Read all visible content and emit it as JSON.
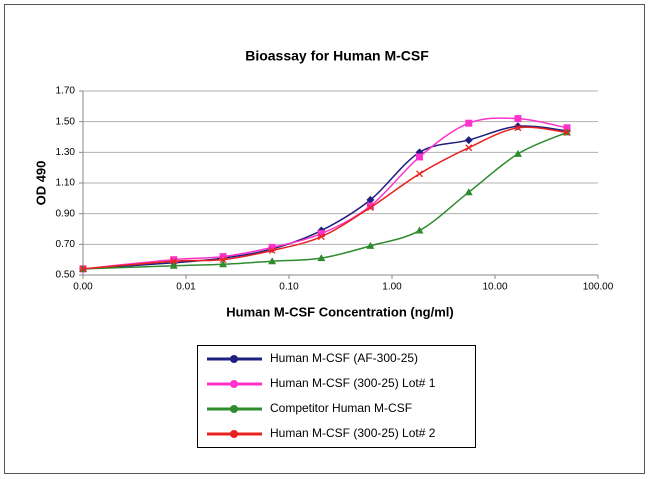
{
  "chart_data": {
    "type": "line",
    "title": "Bioassay for Human M-CSF",
    "xlabel": "Human M-CSF Concentration (ng/ml)",
    "ylabel": "OD 490",
    "xscale": "log",
    "grid": true,
    "legend_position": "bottom",
    "x": [
      0.001,
      0.0076,
      0.0229,
      0.0686,
      0.206,
      0.617,
      1.85,
      5.56,
      16.7,
      50
    ],
    "series": [
      {
        "name": "Human M-CSF (AF-300-25)",
        "color": "#1f1f80",
        "marker": "diamond",
        "values": [
          0.54,
          0.58,
          0.61,
          0.67,
          0.79,
          0.99,
          1.3,
          1.38,
          1.47,
          1.44
        ]
      },
      {
        "name": "Human M-CSF (300-25) Lot# 1",
        "color": "#ff33cc",
        "marker": "square",
        "values": [
          0.54,
          0.6,
          0.62,
          0.68,
          0.77,
          0.95,
          1.27,
          1.49,
          1.52,
          1.46
        ]
      },
      {
        "name": "Competitor Human M-CSF",
        "color": "#2e8b2e",
        "marker": "triangle",
        "values": [
          0.54,
          0.56,
          0.57,
          0.59,
          0.61,
          0.69,
          0.79,
          1.04,
          1.29,
          1.43
        ]
      },
      {
        "name": "Human M-CSF (300-25) Lot# 2",
        "color": "#e8231f",
        "marker": "x",
        "values": [
          0.54,
          0.59,
          0.6,
          0.66,
          0.75,
          0.94,
          1.16,
          1.33,
          1.46,
          1.43
        ]
      }
    ],
    "xlim": [
      0.001,
      100
    ],
    "xticks": [
      {
        "value": 0.001,
        "label": "0.00"
      },
      {
        "value": 0.01,
        "label": "0.01"
      },
      {
        "value": 0.1,
        "label": "0.10"
      },
      {
        "value": 1,
        "label": "1.00"
      },
      {
        "value": 10,
        "label": "10.00"
      },
      {
        "value": 100,
        "label": "100.00"
      }
    ],
    "ylim": [
      0.5,
      1.7
    ],
    "yticks": [
      {
        "value": 0.5,
        "label": "0.50"
      },
      {
        "value": 0.7,
        "label": "0.70"
      },
      {
        "value": 0.9,
        "label": "0.90"
      },
      {
        "value": 1.1,
        "label": "1.10"
      },
      {
        "value": 1.3,
        "label": "1.30"
      },
      {
        "value": 1.5,
        "label": "1.50"
      },
      {
        "value": 1.7,
        "label": "1.70"
      }
    ]
  }
}
